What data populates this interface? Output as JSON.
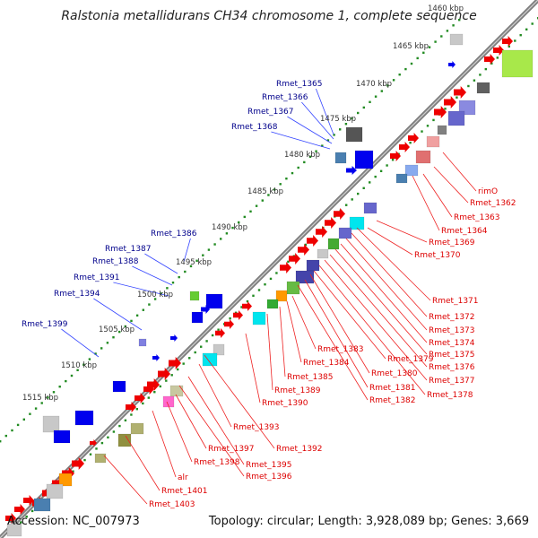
{
  "title": "Ralstonia metallidurans CH34 chromosome 1, complete sequence",
  "footer": {
    "accession": "Accession: NC_007973",
    "summary": "Topology: circular; Length: 3,928,089 bp; Genes: 3,669"
  },
  "colors": {
    "backbone": "#808080",
    "tick": "#228b22",
    "label_forward": "#00008b",
    "label_reverse": "#dd0000",
    "gene_forward": "#0000ee",
    "gene_reverse": "#ee0000"
  },
  "scale_ticks": [
    "1460 kbp",
    "1465 kbp",
    "1470 kbp",
    "1475 kbp",
    "1480 kbp",
    "1485 kbp",
    "1490 kbp",
    "1495 kbp",
    "1500 kbp",
    "1505 kbp",
    "1510 kbp",
    "1515 kbp"
  ],
  "forward_labels": [
    "Rmet_1365",
    "Rmet_1366",
    "Rmet_1367",
    "Rmet_1368",
    "Rmet_1386",
    "Rmet_1387",
    "Rmet_1388",
    "Rmet_1391",
    "Rmet_1394",
    "Rmet_1399"
  ],
  "reverse_labels": [
    "rimO",
    "Rmet_1362",
    "Rmet_1363",
    "Rmet_1364",
    "Rmet_1369",
    "Rmet_1370",
    "Rmet_1371",
    "Rmet_1372",
    "Rmet_1373",
    "Rmet_1374",
    "Rmet_1375",
    "Rmet_1376",
    "Rmet_1377",
    "Rmet_1378",
    "Rmet_1379",
    "Rmet_1380",
    "Rmet_1381",
    "Rmet_1382",
    "Rmet_1383",
    "Rmet_1384",
    "Rmet_1385",
    "Rmet_1389",
    "Rmet_1390",
    "Rmet_1392",
    "Rmet_1393",
    "Rmet_1395",
    "Rmet_1396",
    "Rmet_1397",
    "Rmet_1398",
    "alr",
    "Rmet_1401",
    "Rmet_1403"
  ]
}
